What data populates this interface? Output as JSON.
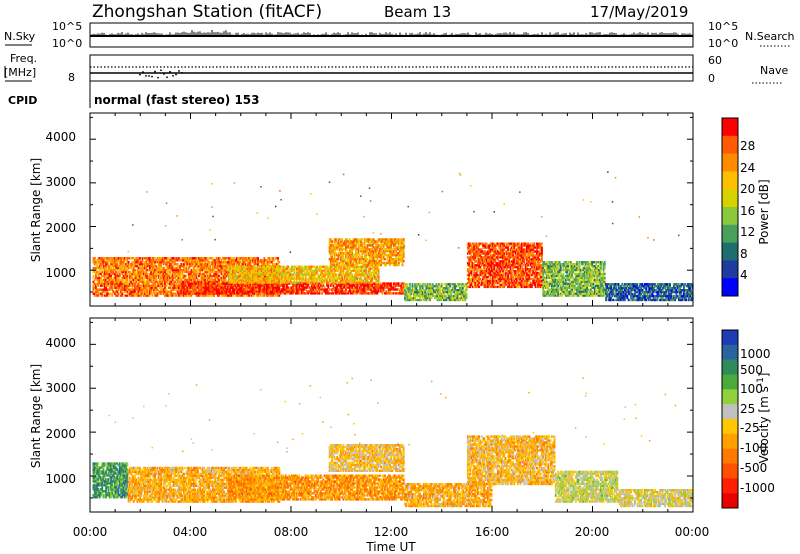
{
  "title": {
    "station": "Zhongshan Station (fitACF)",
    "beam": "Beam 13",
    "date": "17/May/2019"
  },
  "header_panels": {
    "nsky_label": "N.Sky",
    "nsky_ticks": [
      "10^5",
      "10^0"
    ],
    "nsearch_label": "N.Search",
    "nsearch_ticks": [
      "10^5",
      "10^0"
    ],
    "freq_label_line1": "Freq.",
    "freq_label_line2": "[MHz]",
    "freq_tick": "8",
    "nave_label": "Nave",
    "nave_ticks": [
      "60",
      "0"
    ],
    "cpid_label": "CPID",
    "cpid_text": "normal (fast stereo) 153"
  },
  "axes": {
    "ylabel": "Slant Range [km]",
    "xlabel": "Time UT",
    "yticks": [
      "4000",
      "3000",
      "2000",
      "1000"
    ],
    "xticks": [
      "00:00",
      "04:00",
      "08:00",
      "12:00",
      "16:00",
      "20:00",
      "00:00"
    ]
  },
  "colorbars": {
    "power": {
      "label": "Power [dB]",
      "ticks": [
        "28",
        "24",
        "20",
        "16",
        "12",
        "8",
        "4"
      ],
      "colors": [
        "#ff0000",
        "#ff5a00",
        "#ff8c00",
        "#ffbe00",
        "#d7d200",
        "#8cc83c",
        "#4aa05a",
        "#1e6e6e",
        "#1e3ca0",
        "#0000ff"
      ]
    },
    "velocity": {
      "label": "Velocity [m s",
      "label_sup": "-1",
      "label_end": "]",
      "ticks": [
        "1000",
        "500",
        "100",
        "25",
        "-25",
        "-100",
        "-500",
        "-1000"
      ],
      "colors": [
        "#1e3cb4",
        "#2864a0",
        "#2d8c5a",
        "#4baa3c",
        "#91d23c",
        "#c0c0c0",
        "#ffc800",
        "#ffa000",
        "#ff7800",
        "#ff5000",
        "#ff1e00",
        "#e60000"
      ]
    }
  },
  "chart_data": [
    {
      "type": "heatmap",
      "title": "",
      "xlabel": "Time UT",
      "ylabel": "Slant Range [km]",
      "x_range_hours": [
        0,
        24
      ],
      "ylim": [
        180,
        4600
      ],
      "colorbar": "Power [dB]",
      "value_range": [
        2,
        30
      ],
      "echo_regions": [
        {
          "t_start": 0.1,
          "t_end": 7.5,
          "r_min": 400,
          "r_max": 1300,
          "power": 24
        },
        {
          "t_start": 3.5,
          "t_end": 12.5,
          "r_min": 450,
          "r_max": 700,
          "power": 28
        },
        {
          "t_start": 5.5,
          "t_end": 11.5,
          "r_min": 700,
          "r_max": 1100,
          "power": 20
        },
        {
          "t_start": 9.5,
          "t_end": 12.5,
          "r_min": 1100,
          "r_max": 1700,
          "power": 22
        },
        {
          "t_start": 12.5,
          "t_end": 15.0,
          "r_min": 300,
          "r_max": 700,
          "power": 14
        },
        {
          "t_start": 15.0,
          "t_end": 18.0,
          "r_min": 600,
          "r_max": 1600,
          "power": 26
        },
        {
          "t_start": 18.0,
          "t_end": 20.5,
          "r_min": 400,
          "r_max": 1200,
          "power": 14
        },
        {
          "t_start": 20.5,
          "t_end": 24.0,
          "r_min": 300,
          "r_max": 700,
          "power": 8
        }
      ]
    },
    {
      "type": "heatmap",
      "title": "",
      "xlabel": "Time UT",
      "ylabel": "Slant Range [km]",
      "x_range_hours": [
        0,
        24
      ],
      "ylim": [
        180,
        4600
      ],
      "colorbar": "Velocity [m s^-1]",
      "value_range": [
        -1000,
        1000
      ],
      "echo_regions": [
        {
          "t_start": 0.1,
          "t_end": 1.5,
          "r_min": 500,
          "r_max": 1300,
          "velocity": 500
        },
        {
          "t_start": 1.5,
          "t_end": 7.5,
          "r_min": 400,
          "r_max": 1200,
          "velocity": -200
        },
        {
          "t_start": 5.5,
          "t_end": 12.5,
          "r_min": 450,
          "r_max": 1000,
          "velocity": -300
        },
        {
          "t_start": 9.5,
          "t_end": 12.5,
          "r_min": 1100,
          "r_max": 1700,
          "velocity": -100
        },
        {
          "t_start": 12.5,
          "t_end": 16.0,
          "r_min": 300,
          "r_max": 800,
          "velocity": -200
        },
        {
          "t_start": 15.0,
          "t_end": 18.5,
          "r_min": 800,
          "r_max": 1900,
          "velocity": -150
        },
        {
          "t_start": 18.5,
          "t_end": 21.0,
          "r_min": 400,
          "r_max": 1100,
          "velocity": 100
        },
        {
          "t_start": 21.0,
          "t_end": 24.0,
          "r_min": 300,
          "r_max": 700,
          "velocity": 30
        }
      ]
    }
  ]
}
